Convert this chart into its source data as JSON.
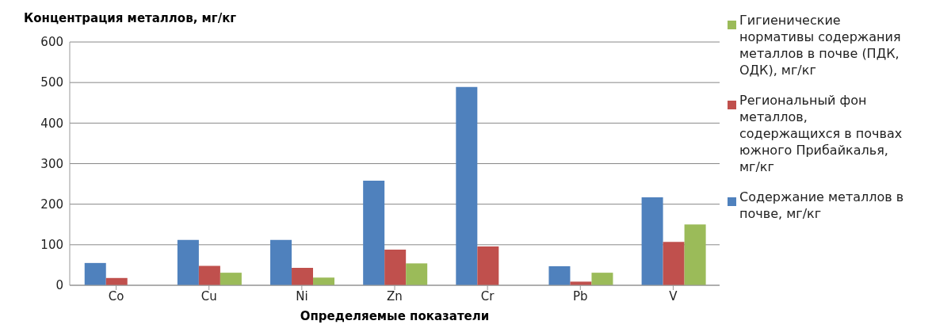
{
  "chart_data": {
    "type": "bar",
    "title": "Концентрация металлов, мг/кг",
    "xlabel": "Определяемые показатели",
    "categories": [
      "Co",
      "Cu",
      "Ni",
      "Zn",
      "Cr",
      "Pb",
      "V"
    ],
    "series": [
      {
        "name": "Содержание металлов в почве, мг/кг",
        "color": "#4f81bd",
        "values": [
          55,
          112,
          112,
          258,
          489,
          47,
          217
        ]
      },
      {
        "name": "Региональный фон металлов, содержащихся в почвах южного Прибайкалья, мг/кг",
        "color": "#c0504d",
        "values": [
          18,
          48,
          43,
          88,
          96,
          9,
          107
        ]
      },
      {
        "name": "Гигиенические нормативы содержания металлов в почве (ПДК, ОДК), мг/кг",
        "color": "#9bbb59",
        "values": [
          null,
          31,
          19,
          54,
          null,
          31,
          150
        ]
      }
    ],
    "ylim": [
      0,
      600
    ],
    "yticks": [
      0,
      100,
      200,
      300,
      400,
      500,
      600
    ],
    "grid": "y",
    "legend": "right"
  }
}
